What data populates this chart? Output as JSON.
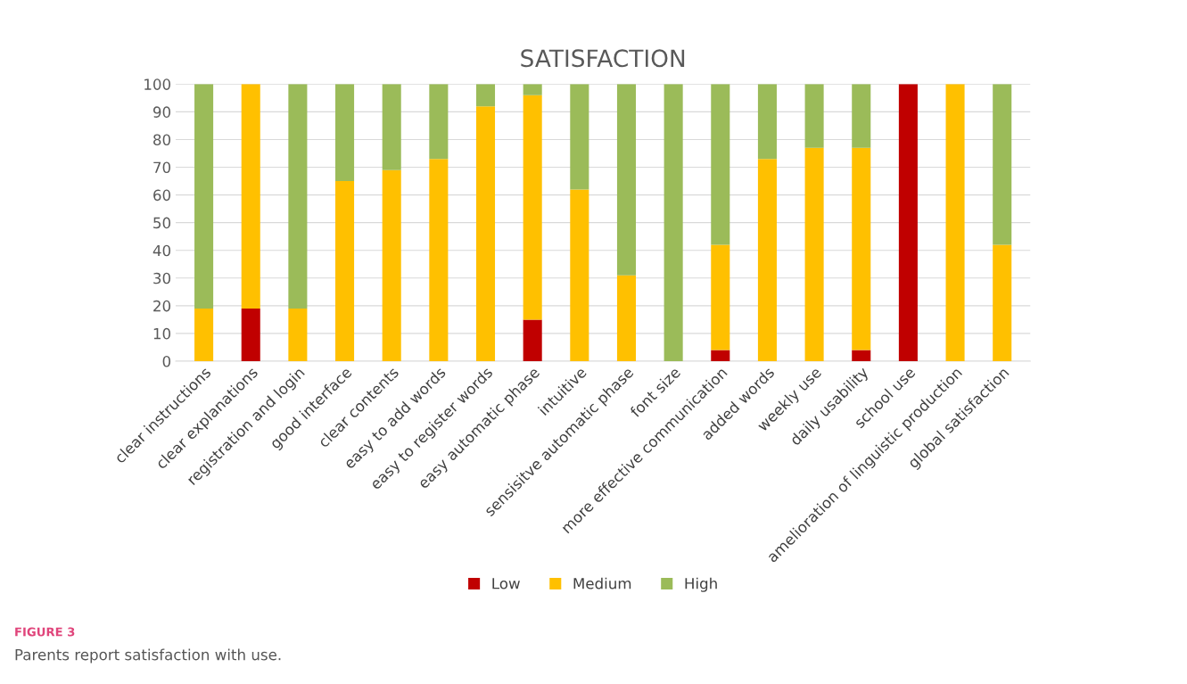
{
  "chart_data": {
    "type": "bar",
    "stacked": true,
    "title": "SATISFACTION",
    "categories": [
      "clear instructions",
      "clear explanations",
      "registration and login",
      "good interface",
      "clear contents",
      "easy to add words",
      "easy to register words",
      "easy automatic phase",
      "intuitive",
      "sensisitve automatic phase",
      "font size",
      "more effective communication",
      "added words",
      "weekly use",
      "daily usability",
      "school use",
      "amelioration of linguistic production",
      "global satisfaction"
    ],
    "series": [
      {
        "name": "Low",
        "color": "#c00000",
        "values": [
          0,
          19,
          0,
          0,
          0,
          0,
          0,
          15,
          0,
          0,
          0,
          4,
          0,
          0,
          4,
          100,
          0,
          0
        ]
      },
      {
        "name": "Medium",
        "color": "#ffc000",
        "values": [
          19,
          81,
          19,
          65,
          69,
          73,
          92,
          81,
          62,
          31,
          0,
          38,
          73,
          77,
          73,
          0,
          100,
          42
        ]
      },
      {
        "name": "High",
        "color": "#9bbb59",
        "values": [
          81,
          0,
          81,
          35,
          31,
          27,
          8,
          4,
          38,
          69,
          100,
          58,
          27,
          23,
          23,
          0,
          0,
          58
        ]
      }
    ],
    "ylim": [
      0,
      100
    ],
    "yticks": [
      0,
      10,
      20,
      30,
      40,
      50,
      60,
      70,
      80,
      90,
      100
    ],
    "grid": "y",
    "legend": "bottom",
    "annotations": [
      "FIGURE 3",
      "Parents report satisfaction with use."
    ]
  }
}
